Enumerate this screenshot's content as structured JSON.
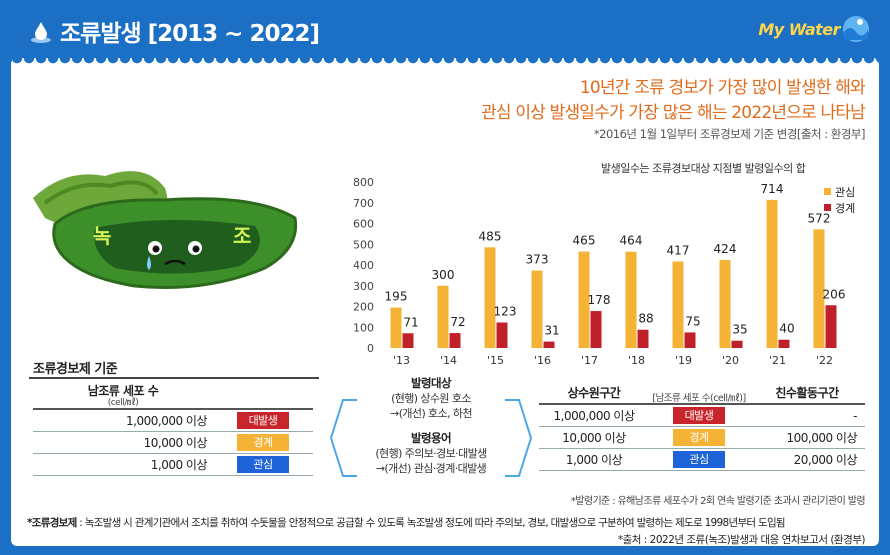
{
  "header": {
    "title": "조류발생 [2013 ~ 2022]",
    "brand": "My Water"
  },
  "headline": {
    "line1": "10년간 조류 경보가 가장 많이 발생한 해와",
    "line2": "관심 이상 발생일수가 가장 많은 해는 2022년으로 나타남",
    "note": "*2016년 1월 1일부터 조류경보제 기준 변경[출처 : 환경부]"
  },
  "illustration": {
    "left_char": "녹",
    "right_char": "조"
  },
  "chart_data": {
    "type": "bar",
    "title": "발생일수는 조류경보대상 지점별 발령일수의 합",
    "categories": [
      "'13",
      "'14",
      "'15",
      "'16",
      "'17",
      "'18",
      "'19",
      "'20",
      "'21",
      "'22"
    ],
    "series": [
      {
        "name": "관심",
        "values": [
          195,
          300,
          485,
          373,
          465,
          464,
          417,
          424,
          714,
          572
        ]
      },
      {
        "name": "경계",
        "values": [
          71,
          72,
          123,
          31,
          178,
          88,
          75,
          35,
          40,
          206
        ]
      }
    ],
    "y_ticks": [
      "0",
      "100",
      "200",
      "300",
      "400",
      "500",
      "600",
      "700",
      "800"
    ],
    "ylim": [
      0,
      800
    ],
    "colors": {
      "관심": "#f4b335",
      "경계": "#c0202a"
    },
    "legend_position": "top-right"
  },
  "criteria": {
    "title": "조류경보제 기준",
    "left_header": "남조류 세포 수",
    "left_unit": "(cell/㎖)",
    "left_rows": [
      {
        "count": "1,000,000 이상",
        "level": "대발생"
      },
      {
        "count": "10,000 이상",
        "level": "경계"
      },
      {
        "count": "1,000 이상",
        "level": "관심"
      }
    ],
    "middle": {
      "target_title": "발령대상",
      "target_current": "(현행) 상수원 호소",
      "target_improved": "→(개선) 호소, 하천",
      "terms_title": "발령용어",
      "terms_current": "(현행) 주의보·경보·대발생",
      "terms_improved": "→(개선) 관심·경계·대발생"
    },
    "right_header_a": "상수원구간",
    "right_header_b": "친수활동구간",
    "right_unit": "[남조류 세포 수(cell/㎖)]",
    "right_rows": [
      {
        "a": "1,000,000 이상",
        "level": "대발생",
        "b": "-"
      },
      {
        "a": "10,000 이상",
        "level": "경계",
        "b": "100,000 이상"
      },
      {
        "a": "1,000 이상",
        "level": "관심",
        "b": "20,000 이상"
      }
    ],
    "right_note": "*발령기준 : 유해남조류 세포수가 2회 연속 발령기준 초과시 관리기관이 발령"
  },
  "footer": {
    "definition_label": "*조류경보제",
    "definition": " : 녹조발생 시 관계기관에서 조치를 취하여 수돗물을 안정적으로 공급할 수 있도록 녹조발생 정도에 따라 주의보, 경보, 대발생으로 구분하여 발령하는 제도로 1998년부터 도입됨",
    "source": "*출처 : 2022년 조류(녹조)발생과 대응 연차보고서 (환경부)"
  }
}
